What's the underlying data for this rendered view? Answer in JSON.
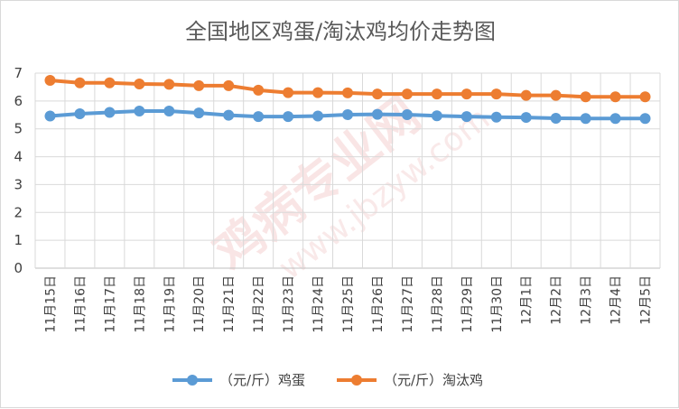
{
  "chart_data": {
    "type": "line",
    "title": "全国地区鸡蛋/淘汰鸡均价走势图",
    "xlabel": "",
    "ylabel": "",
    "ylim": [
      0,
      7
    ],
    "yticks": [
      "0",
      "1",
      "2",
      "3",
      "4",
      "5",
      "6",
      "7"
    ],
    "grid": true,
    "legend_position": "bottom",
    "categories": [
      "11月15日",
      "11月16日",
      "11月17日",
      "11月18日",
      "11月19日",
      "11月20日",
      "11月21日",
      "11月22日",
      "11月23日",
      "11月24日",
      "11月25日",
      "11月26日",
      "11月27日",
      "11月28日",
      "11月29日",
      "11月30日",
      "12月1日",
      "12月2日",
      "12月3日",
      "12月4日",
      "12月5日"
    ],
    "series": [
      {
        "name": "（元/斤）鸡蛋",
        "color": "#5b9bd5",
        "values": [
          5.46,
          5.54,
          5.59,
          5.64,
          5.64,
          5.57,
          5.49,
          5.44,
          5.44,
          5.46,
          5.51,
          5.52,
          5.51,
          5.47,
          5.44,
          5.42,
          5.41,
          5.38,
          5.37,
          5.37,
          5.37
        ]
      },
      {
        "name": "（元/斤）淘汰鸡",
        "color": "#ed7d31",
        "values": [
          6.74,
          6.65,
          6.65,
          6.61,
          6.6,
          6.55,
          6.55,
          6.39,
          6.3,
          6.3,
          6.29,
          6.25,
          6.25,
          6.25,
          6.25,
          6.25,
          6.2,
          6.2,
          6.15,
          6.15,
          6.15
        ]
      }
    ],
    "watermark": [
      "鸡病专业网",
      "www.jbzyw.com"
    ]
  }
}
